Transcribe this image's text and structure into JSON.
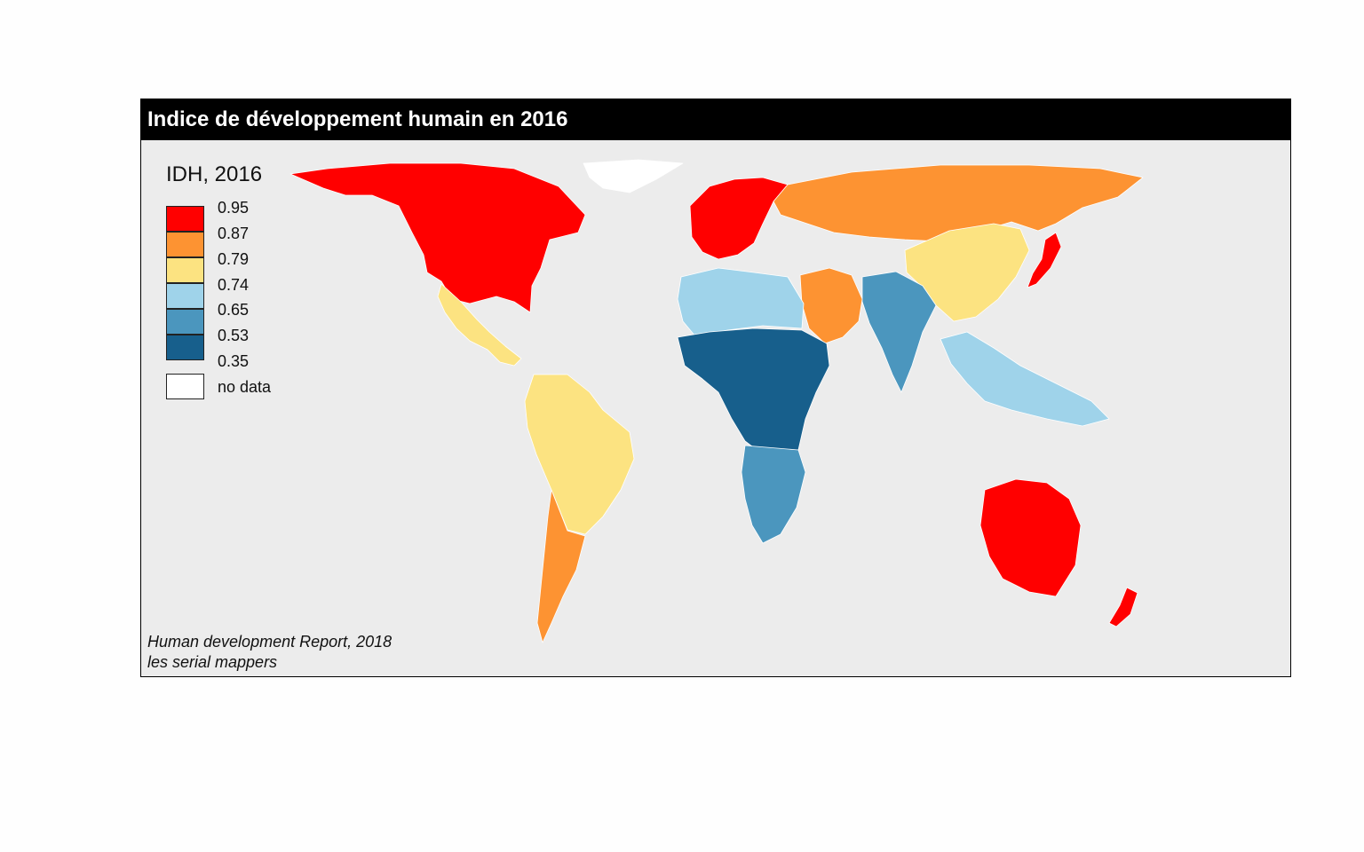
{
  "title": "Indice de développement humain en 2016",
  "legend": {
    "title": "IDH, 2016",
    "breaks": [
      "0.95",
      "0.87",
      "0.79",
      "0.74",
      "0.65",
      "0.53",
      "0.35"
    ],
    "classes": [
      {
        "color": "#ff0000"
      },
      {
        "color": "#fd9332"
      },
      {
        "color": "#fce381"
      },
      {
        "color": "#9fd3ea"
      },
      {
        "color": "#4b96be"
      },
      {
        "color": "#175f8c"
      }
    ],
    "nodata": {
      "label": "no data",
      "color": "#ffffff"
    }
  },
  "source": {
    "line1": "Human development Report, 2018",
    "line2": "les serial mappers"
  },
  "colors": {
    "ocean": "#ececec",
    "border": "#ffffff",
    "title_bg": "#000000",
    "title_text": "#ffffff"
  },
  "regions": [
    {
      "name": "North America",
      "class": 0
    },
    {
      "name": "Mexico & Central America",
      "class": 2
    },
    {
      "name": "South America",
      "class": 2
    },
    {
      "name": "Argentina & Chile",
      "class": 1
    },
    {
      "name": "Western Europe",
      "class": 0
    },
    {
      "name": "Russia",
      "class": 1
    },
    {
      "name": "China",
      "class": 2
    },
    {
      "name": "Middle East",
      "class": 1
    },
    {
      "name": "South Asia",
      "class": 4
    },
    {
      "name": "North Africa",
      "class": 3
    },
    {
      "name": "Sub-Saharan Africa",
      "class": 5
    },
    {
      "name": "Southern Africa",
      "class": 4
    },
    {
      "name": "Southeast Asia",
      "class": 3
    },
    {
      "name": "Japan & Korea",
      "class": 0
    },
    {
      "name": "Australia & New Zealand",
      "class": 0
    },
    {
      "name": "Greenland",
      "class": -1
    }
  ]
}
